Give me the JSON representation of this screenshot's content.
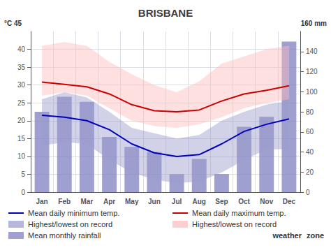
{
  "chart_data": {
    "type": "combo",
    "title": "BRISBANE",
    "categories": [
      "Jan",
      "Feb",
      "Mar",
      "Apr",
      "May",
      "Jun",
      "Jul",
      "Aug",
      "Sep",
      "Oct",
      "Nov",
      "Dec"
    ],
    "series": [
      {
        "name": "Mean daily minimum temp.",
        "type": "line",
        "color": "#0000bb",
        "values": [
          21.5,
          21.0,
          20.0,
          17.5,
          13.5,
          11.0,
          10.0,
          10.5,
          13.5,
          17.0,
          19.0,
          20.5
        ]
      },
      {
        "name": "Mean daily maximum temp.",
        "type": "line",
        "color": "#cc0000",
        "values": [
          30.8,
          30.2,
          29.5,
          27.5,
          24.5,
          22.8,
          22.5,
          23.0,
          25.5,
          27.5,
          28.5,
          29.8
        ]
      },
      {
        "name": "Highest/lowest on record",
        "type": "band",
        "color": "#9999cc",
        "low": [
          13.0,
          14.0,
          13.5,
          9.0,
          5.5,
          3.5,
          2.5,
          3.0,
          5.5,
          9.0,
          12.0,
          12.0
        ],
        "high": [
          26.0,
          28.0,
          26.5,
          22.5,
          18.0,
          16.5,
          15.0,
          16.0,
          20.0,
          22.5,
          24.5,
          25.5
        ]
      },
      {
        "name": "Highest/lowest on record",
        "type": "band",
        "color": "#ffbbbb",
        "low": [
          27.0,
          28.0,
          27.0,
          23.5,
          20.0,
          18.5,
          18.0,
          19.0,
          21.0,
          23.5,
          25.0,
          26.0
        ],
        "high": [
          41.0,
          42.0,
          41.0,
          36.5,
          33.0,
          30.0,
          28.0,
          31.0,
          36.0,
          38.0,
          40.0,
          41.0
        ]
      },
      {
        "name": "Mean monthly rainfall",
        "type": "bar",
        "axis": "y2",
        "color": "#8080c0",
        "values": [
          80,
          95,
          90,
          55,
          45,
          40,
          18,
          33,
          18,
          65,
          75,
          150
        ]
      }
    ],
    "ylim": [
      0,
      45
    ],
    "yticks": [
      0,
      5,
      10,
      15,
      20,
      25,
      30,
      35,
      40
    ],
    "y2lim": [
      0,
      160
    ],
    "y2ticks": [
      0,
      20,
      40,
      60,
      80,
      100,
      120,
      140
    ],
    "grid": true,
    "annotations": [
      "°C 45",
      "160 mm",
      "weather",
      "zone"
    ]
  }
}
